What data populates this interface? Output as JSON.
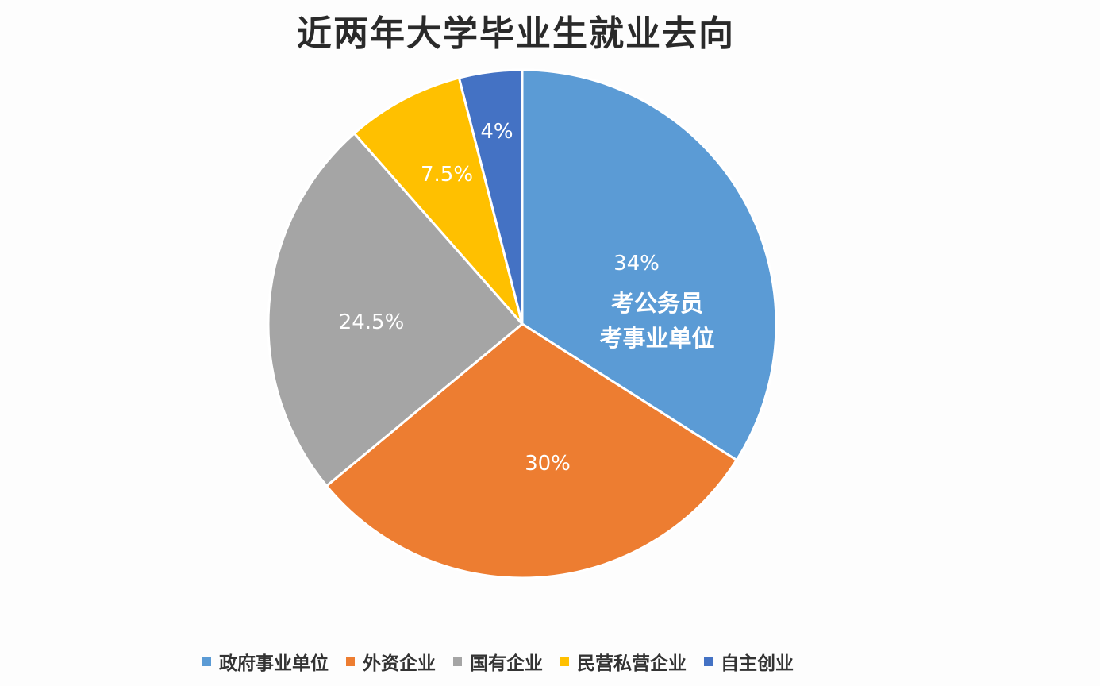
{
  "chart_data": {
    "type": "pie",
    "title": "近两年大学毕业生就业去向",
    "categories": [
      "政府事业单位",
      "外资企业",
      "国有企业",
      "民营私营企业",
      "自主创业"
    ],
    "values": [
      34,
      30,
      24.5,
      7.5,
      4
    ],
    "labels": [
      "34%",
      "30%",
      "24.5%",
      "7.5%",
      "4%"
    ],
    "colors": [
      "#5b9bd5",
      "#ed7d31",
      "#a5a5a5",
      "#ffc000",
      "#4472c4"
    ],
    "annotations": [
      {
        "slice": "政府事业单位",
        "lines": [
          "考公务员",
          "考事业单位"
        ]
      }
    ],
    "start_angle": "12 o'clock, clockwise",
    "legend_position": "bottom"
  }
}
